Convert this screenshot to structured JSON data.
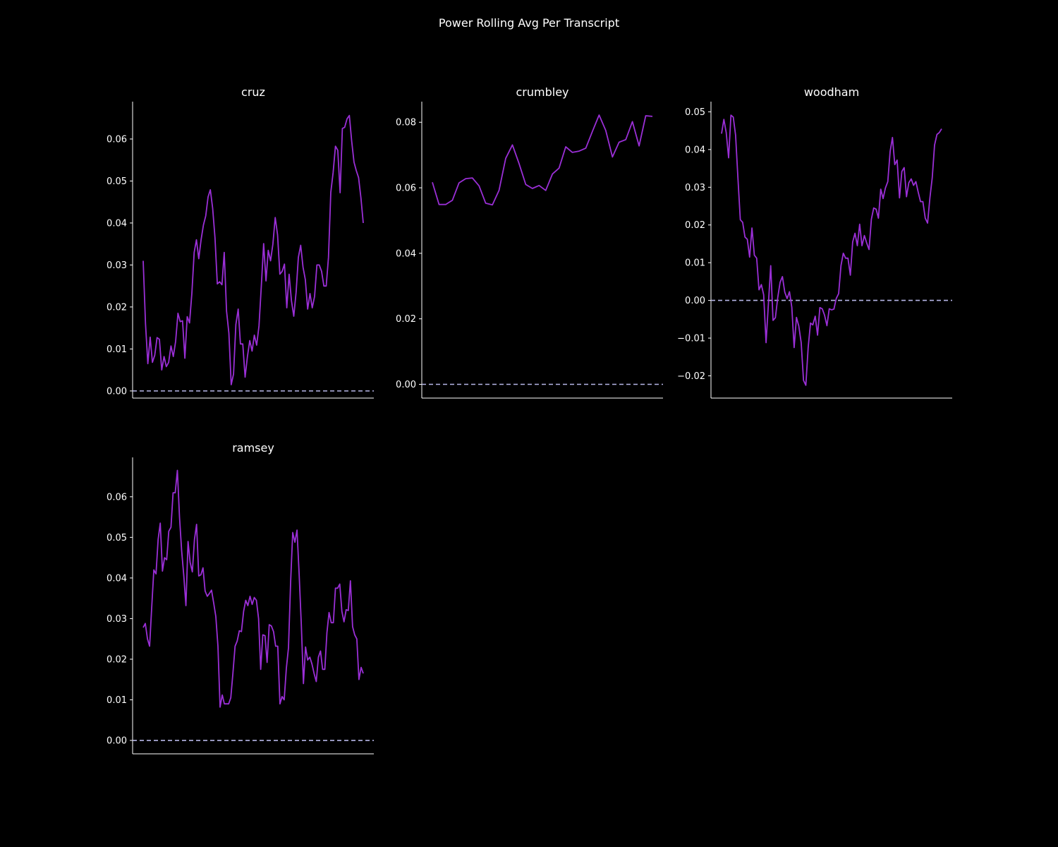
{
  "title": "Power Rolling Avg Per Transcript",
  "colors": {
    "background": "#000000",
    "line": "#9a2fd6",
    "zero_line": "#b7b7e8",
    "axis": "#ffffff",
    "text": "#ffffff"
  },
  "chart_data": [
    {
      "type": "line",
      "title": "cruz",
      "ylim": [
        -0.0017,
        0.0689
      ],
      "yticks": [
        "0.00",
        "0.01",
        "0.02",
        "0.03",
        "0.04",
        "0.05",
        "0.06"
      ],
      "yticks_values": [
        0.0,
        0.01,
        0.02,
        0.03,
        0.04,
        0.05,
        0.06
      ],
      "zero_line": true,
      "grid": false,
      "values": [
        0.031,
        0.016,
        0.0065,
        0.0128,
        0.0068,
        0.0085,
        0.0127,
        0.0123,
        0.005,
        0.0082,
        0.0058,
        0.0068,
        0.0107,
        0.0082,
        0.0118,
        0.0185,
        0.0165,
        0.0167,
        0.0078,
        0.0177,
        0.0162,
        0.0232,
        0.033,
        0.036,
        0.0315,
        0.036,
        0.0395,
        0.0417,
        0.0462,
        0.0479,
        0.0435,
        0.0365,
        0.0255,
        0.026,
        0.0253,
        0.033,
        0.019,
        0.0138,
        0.0015,
        0.004,
        0.0158,
        0.0195,
        0.0112,
        0.0112,
        0.0033,
        0.0082,
        0.012,
        0.0095,
        0.0133,
        0.0109,
        0.0155,
        0.025,
        0.0351,
        0.0262,
        0.0335,
        0.031,
        0.035,
        0.0413,
        0.0372,
        0.0278,
        0.0285,
        0.0302,
        0.0198,
        0.0278,
        0.0215,
        0.0178,
        0.0235,
        0.0318,
        0.0347,
        0.0295,
        0.0265,
        0.0195,
        0.0232,
        0.0198,
        0.0225,
        0.03,
        0.03,
        0.0285,
        0.025,
        0.025,
        0.0318,
        0.0473,
        0.052,
        0.0583,
        0.0573,
        0.0472,
        0.0625,
        0.0628,
        0.0648,
        0.0656,
        0.0595,
        0.0545,
        0.0525,
        0.0508,
        0.046,
        0.04
      ]
    },
    {
      "type": "line",
      "title": "crumbley",
      "ylim": [
        -0.0042,
        0.0863
      ],
      "yticks": [
        "0.00",
        "0.02",
        "0.04",
        "0.06",
        "0.08"
      ],
      "yticks_values": [
        0.0,
        0.02,
        0.04,
        0.06,
        0.08
      ],
      "zero_line": true,
      "grid": false,
      "values": [
        0.0617,
        0.0549,
        0.0549,
        0.0562,
        0.0615,
        0.0628,
        0.063,
        0.0606,
        0.0553,
        0.0548,
        0.0592,
        0.069,
        0.0731,
        0.0674,
        0.061,
        0.0598,
        0.0607,
        0.0592,
        0.0642,
        0.066,
        0.0725,
        0.0708,
        0.0712,
        0.0721,
        0.0772,
        0.0822,
        0.0775,
        0.0694,
        0.0739,
        0.0747,
        0.0802,
        0.0728,
        0.082,
        0.0818
      ]
    },
    {
      "type": "line",
      "title": "woodham",
      "ylim": [
        -0.0259,
        0.0527
      ],
      "yticks": [
        "−0.02",
        "−0.01",
        "0.00",
        "0.01",
        "0.02",
        "0.03",
        "0.04",
        "0.05"
      ],
      "yticks_values": [
        -0.02,
        -0.01,
        0.0,
        0.01,
        0.02,
        0.03,
        0.04,
        0.05
      ],
      "zero_line": true,
      "grid": false,
      "values": [
        0.0442,
        0.048,
        0.0445,
        0.0378,
        0.0491,
        0.0486,
        0.0438,
        0.0325,
        0.0214,
        0.0207,
        0.0168,
        0.0162,
        0.0115,
        0.0192,
        0.012,
        0.0112,
        0.0028,
        0.0042,
        0.0015,
        -0.0112,
        -0.001,
        0.0092,
        -0.0053,
        -0.0046,
        0.0008,
        0.0048,
        0.0063,
        0.0022,
        0.0005,
        0.0023,
        -0.0018,
        -0.0125,
        -0.0045,
        -0.0068,
        -0.0112,
        -0.0212,
        -0.0225,
        -0.0125,
        -0.006,
        -0.0065,
        -0.0042,
        -0.0092,
        -0.0019,
        -0.0022,
        -0.0039,
        -0.0067,
        -0.0022,
        -0.0025,
        -0.0023,
        0.0005,
        0.0018,
        0.0092,
        0.0125,
        0.0112,
        0.0112,
        0.0067,
        0.0155,
        0.0178,
        0.0145,
        0.0202,
        0.0145,
        0.0172,
        0.0152,
        0.0135,
        0.0215,
        0.0245,
        0.0242,
        0.0218,
        0.0295,
        0.027,
        0.0298,
        0.0315,
        0.0395,
        0.0432,
        0.036,
        0.0372,
        0.0272,
        0.0342,
        0.0352,
        0.0275,
        0.0312,
        0.0322,
        0.0305,
        0.0315,
        0.0287,
        0.0262,
        0.0262,
        0.0218,
        0.0205,
        0.0272,
        0.0325,
        0.0412,
        0.044,
        0.0445,
        0.0455
      ]
    },
    {
      "type": "line",
      "title": "ramsey",
      "ylim": [
        -0.0033,
        0.0697
      ],
      "yticks": [
        "0.00",
        "0.01",
        "0.02",
        "0.03",
        "0.04",
        "0.05",
        "0.06"
      ],
      "yticks_values": [
        0.0,
        0.01,
        0.02,
        0.03,
        0.04,
        0.05,
        0.06
      ],
      "zero_line": true,
      "grid": false,
      "values": [
        0.0278,
        0.0288,
        0.025,
        0.0232,
        0.0328,
        0.042,
        0.041,
        0.0495,
        0.0535,
        0.0417,
        0.045,
        0.0445,
        0.0515,
        0.0525,
        0.061,
        0.061,
        0.0665,
        0.055,
        0.0468,
        0.0405,
        0.0332,
        0.049,
        0.0438,
        0.0415,
        0.0495,
        0.0532,
        0.0405,
        0.0408,
        0.0425,
        0.0368,
        0.0355,
        0.0362,
        0.037,
        0.0338,
        0.0305,
        0.0232,
        0.0082,
        0.0112,
        0.009,
        0.009,
        0.009,
        0.0105,
        0.0165,
        0.0232,
        0.0245,
        0.027,
        0.0268,
        0.0318,
        0.0345,
        0.0332,
        0.0355,
        0.0335,
        0.0352,
        0.0345,
        0.03,
        0.0175,
        0.026,
        0.0258,
        0.0192,
        0.0285,
        0.0282,
        0.0268,
        0.0232,
        0.0232,
        0.009,
        0.0108,
        0.01,
        0.0178,
        0.0228,
        0.0388,
        0.0512,
        0.0488,
        0.0518,
        0.041,
        0.0285,
        0.014,
        0.023,
        0.0198,
        0.0205,
        0.0188,
        0.0165,
        0.0145,
        0.0205,
        0.022,
        0.0175,
        0.0175,
        0.0265,
        0.0315,
        0.029,
        0.029,
        0.0375,
        0.0375,
        0.0385,
        0.0318,
        0.0292,
        0.0322,
        0.032,
        0.0393,
        0.028,
        0.026,
        0.025,
        0.015,
        0.018,
        0.0165
      ]
    }
  ]
}
